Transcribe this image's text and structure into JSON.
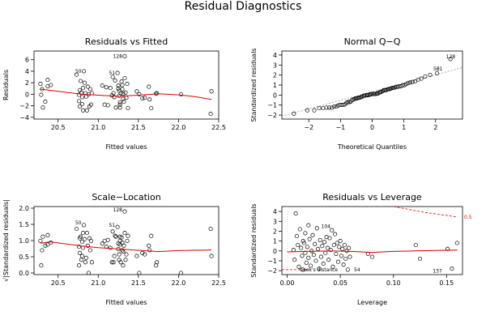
{
  "main_title": "Residual Diagnostics",
  "chart_data": [
    {
      "type": "scatter",
      "title": "Residuals vs Fitted",
      "xlabel": "Fitted values",
      "ylabel": "Residuals",
      "xlim": [
        20.2,
        22.5
      ],
      "ylim": [
        -4.3,
        7.5
      ],
      "xticks": [
        20.5,
        21.0,
        21.5,
        22.0,
        22.5
      ],
      "xtick_labels": [
        "20.5",
        "21.0",
        "21.5",
        "22.0",
        "22.5"
      ],
      "yticks": [
        -4,
        -2,
        0,
        2,
        4,
        6
      ],
      "ytick_labels": [
        "−4",
        "−2",
        "0",
        "2",
        "4",
        "6"
      ],
      "points": [
        [
          20.28,
          1.8
        ],
        [
          20.29,
          -0.1
        ],
        [
          20.3,
          0.9
        ],
        [
          20.31,
          -2.3
        ],
        [
          20.34,
          -1.3
        ],
        [
          20.37,
          2.5
        ],
        [
          20.37,
          1.4
        ],
        [
          20.41,
          1.6
        ],
        [
          20.73,
          3.4
        ],
        [
          20.76,
          -0.1
        ],
        [
          20.76,
          -1.2
        ],
        [
          20.77,
          0.7
        ],
        [
          20.77,
          -2.1
        ],
        [
          20.78,
          2.3
        ],
        [
          20.79,
          0.3
        ],
        [
          20.8,
          -0.5
        ],
        [
          20.8,
          -1.7
        ],
        [
          20.81,
          1.1
        ],
        [
          20.81,
          -2.8
        ],
        [
          20.82,
          4.0
        ],
        [
          20.83,
          2.0
        ],
        [
          20.84,
          0.2
        ],
        [
          20.85,
          -0.4
        ],
        [
          20.86,
          -2.8
        ],
        [
          20.87,
          1.3
        ],
        [
          20.88,
          0.0
        ],
        [
          20.89,
          -2.1
        ],
        [
          20.9,
          0.9
        ],
        [
          20.91,
          -1.8
        ],
        [
          20.92,
          0.2
        ],
        [
          21.05,
          1.5
        ],
        [
          21.08,
          -1.8
        ],
        [
          21.1,
          1.2
        ],
        [
          21.12,
          -1.9
        ],
        [
          21.15,
          1.1
        ],
        [
          21.17,
          -0.2
        ],
        [
          21.18,
          3.0
        ],
        [
          21.19,
          0.2
        ],
        [
          21.2,
          -0.5
        ],
        [
          21.21,
          2.4
        ],
        [
          21.22,
          -2.3
        ],
        [
          21.24,
          3.7
        ],
        [
          21.25,
          1.5
        ],
        [
          21.25,
          1.0
        ],
        [
          21.26,
          0.6
        ],
        [
          21.26,
          -0.3
        ],
        [
          21.27,
          -1.4
        ],
        [
          21.27,
          -1.8
        ],
        [
          21.27,
          -2.3
        ],
        [
          21.28,
          0.2
        ],
        [
          21.29,
          2.2
        ],
        [
          21.3,
          1.6
        ],
        [
          21.3,
          0.9
        ],
        [
          21.31,
          0.1
        ],
        [
          21.31,
          -0.8
        ],
        [
          21.32,
          -1.3
        ],
        [
          21.33,
          2.8
        ],
        [
          21.33,
          6.6
        ],
        [
          21.34,
          0.3
        ],
        [
          21.35,
          -0.6
        ],
        [
          21.36,
          1.8
        ],
        [
          21.37,
          -2.4
        ],
        [
          21.48,
          0.5
        ],
        [
          21.51,
          0.0
        ],
        [
          21.55,
          -0.7
        ],
        [
          21.58,
          -0.6
        ],
        [
          21.63,
          1.3
        ],
        [
          21.64,
          -0.9
        ],
        [
          21.66,
          -2.4
        ],
        [
          21.72,
          0.1
        ],
        [
          21.73,
          0.2
        ],
        [
          22.03,
          0.0
        ],
        [
          22.4,
          -3.4
        ],
        [
          22.41,
          0.5
        ]
      ],
      "smooth": [
        [
          20.28,
          0.9
        ],
        [
          20.5,
          0.5
        ],
        [
          20.8,
          0.0
        ],
        [
          21.0,
          -0.15
        ],
        [
          21.25,
          -0.35
        ],
        [
          21.5,
          -0.15
        ],
        [
          21.75,
          0.1
        ],
        [
          22.0,
          -0.1
        ],
        [
          22.2,
          -0.4
        ],
        [
          22.41,
          -0.9
        ]
      ],
      "labels": [
        {
          "text": "128",
          "x": 21.33,
          "y": 6.6
        },
        {
          "text": "50",
          "x": 20.82,
          "y": 4.0
        },
        {
          "text": "51",
          "x": 21.24,
          "y": 3.7
        }
      ]
    },
    {
      "type": "scatter",
      "title": "Normal Q−Q",
      "xlabel": "Theoretical Quantiles",
      "ylabel": "Standardized residuals",
      "xlim": [
        -2.85,
        2.85
      ],
      "ylim": [
        -2.4,
        4.4
      ],
      "xticks": [
        -2,
        -1,
        0,
        1,
        2
      ],
      "xtick_labels": [
        "−2",
        "−1",
        "0",
        "1",
        "2"
      ],
      "yticks": [
        -2,
        -1,
        0,
        1,
        2,
        3,
        4
      ],
      "ytick_labels": [
        "−2",
        "−1",
        "0",
        "1",
        "2",
        "3",
        "4"
      ],
      "refline": [
        [
          -2.85,
          -2.1
        ],
        [
          2.85,
          2.75
        ]
      ],
      "labels": [
        {
          "text": "128",
          "x": 2.7,
          "y": 3.85
        },
        {
          "text": "51",
          "x": 2.3,
          "y": 2.6
        },
        {
          "text": "50",
          "x": 2.2,
          "y": 2.6
        }
      ]
    },
    {
      "type": "scatter",
      "title": "Scale−Location",
      "xlabel": "Fitted values",
      "ylabel": "√|Standardized residuals|",
      "xlim": [
        20.2,
        22.5
      ],
      "ylim": [
        -0.05,
        2.05
      ],
      "xticks": [
        20.5,
        21.0,
        21.5,
        22.0,
        22.5
      ],
      "xtick_labels": [
        "20.5",
        "21.0",
        "21.5",
        "22.0",
        "22.5"
      ],
      "yticks": [
        0.0,
        0.5,
        1.0,
        1.5,
        2.0
      ],
      "ytick_labels": [
        "0.0",
        "0.5",
        "1.0",
        "1.5",
        "2.0"
      ],
      "smooth": [
        [
          20.28,
          0.92
        ],
        [
          20.4,
          0.96
        ],
        [
          20.8,
          0.83
        ],
        [
          21.0,
          0.78
        ],
        [
          21.25,
          0.74
        ],
        [
          21.5,
          0.7
        ],
        [
          21.75,
          0.66
        ],
        [
          22.0,
          0.69
        ],
        [
          22.41,
          0.71
        ]
      ],
      "labels": [
        {
          "text": "128",
          "x": 21.33,
          "y": 1.95
        },
        {
          "text": "50",
          "x": 20.82,
          "y": 1.55
        },
        {
          "text": "51",
          "x": 21.24,
          "y": 1.48
        }
      ]
    },
    {
      "type": "scatter",
      "title": "Residuals vs Leverage",
      "xlabel": "Leverage",
      "ylabel": "Standardized residuals",
      "xlim": [
        -0.005,
        0.165
      ],
      "ylim": [
        -2.4,
        4.5
      ],
      "xticks": [
        0.0,
        0.05,
        0.1,
        0.15
      ],
      "xtick_labels": [
        "0.00",
        "0.05",
        "0.10",
        "0.15"
      ],
      "yticks": [
        -2,
        -1,
        0,
        1,
        2,
        3,
        4
      ],
      "ytick_labels": [
        "−2",
        "−1",
        "0",
        "1",
        "2",
        "3",
        "4"
      ],
      "points": [
        [
          0.008,
          3.8
        ],
        [
          0.006,
          0.1
        ],
        [
          0.007,
          -0.9
        ],
        [
          0.009,
          1.5
        ],
        [
          0.01,
          0.6
        ],
        [
          0.011,
          -1.6
        ],
        [
          0.012,
          2.2
        ],
        [
          0.013,
          0.3
        ],
        [
          0.014,
          -0.5
        ],
        [
          0.015,
          1.0
        ],
        [
          0.015,
          -1.9
        ],
        [
          0.016,
          0.8
        ],
        [
          0.017,
          -0.2
        ],
        [
          0.017,
          1.8
        ],
        [
          0.018,
          -1.2
        ],
        [
          0.019,
          0.4
        ],
        [
          0.02,
          2.6
        ],
        [
          0.02,
          -0.7
        ],
        [
          0.021,
          1.2
        ],
        [
          0.022,
          -1.5
        ],
        [
          0.023,
          0.0
        ],
        [
          0.024,
          1.6
        ],
        [
          0.025,
          -0.4
        ],
        [
          0.026,
          0.7
        ],
        [
          0.027,
          -1.0
        ],
        [
          0.028,
          2.3
        ],
        [
          0.029,
          0.2
        ],
        [
          0.03,
          -1.8
        ],
        [
          0.031,
          1.1
        ],
        [
          0.032,
          -0.6
        ],
        [
          0.033,
          0.5
        ],
        [
          0.034,
          -1.3
        ],
        [
          0.035,
          0.9
        ],
        [
          0.036,
          -0.2
        ],
        [
          0.037,
          1.4
        ],
        [
          0.038,
          0.3
        ],
        [
          0.039,
          -0.9
        ],
        [
          0.04,
          1.3
        ],
        [
          0.041,
          0.1
        ],
        [
          0.042,
          2.1
        ],
        [
          0.043,
          -1.6
        ],
        [
          0.044,
          0.6
        ],
        [
          0.045,
          1.7
        ],
        [
          0.046,
          -0.3
        ],
        [
          0.047,
          0.8
        ],
        [
          0.048,
          -1.1
        ],
        [
          0.049,
          0.4
        ],
        [
          0.05,
          1.0
        ],
        [
          0.051,
          -0.5
        ],
        [
          0.052,
          0.2
        ],
        [
          0.053,
          -1.4
        ],
        [
          0.054,
          0.6
        ],
        [
          0.055,
          -0.8
        ],
        [
          0.056,
          0.0
        ],
        [
          0.057,
          -1.9
        ],
        [
          0.058,
          0.3
        ],
        [
          0.059,
          -0.6
        ],
        [
          0.076,
          -0.3
        ],
        [
          0.08,
          -0.6
        ],
        [
          0.121,
          0.6
        ],
        [
          0.125,
          -0.8
        ],
        [
          0.151,
          0.2
        ],
        [
          0.155,
          -1.8
        ],
        [
          0.16,
          0.8
        ]
      ],
      "smooth": [
        [
          0.0,
          -0.1
        ],
        [
          0.02,
          -0.05
        ],
        [
          0.04,
          0.0
        ],
        [
          0.06,
          -0.05
        ],
        [
          0.08,
          -0.15
        ],
        [
          0.1,
          -0.05
        ],
        [
          0.12,
          0.0
        ],
        [
          0.14,
          0.05
        ],
        [
          0.16,
          0.1
        ]
      ],
      "cooks": [
        [
          0.1,
          4.5
        ],
        [
          0.13,
          3.9
        ],
        [
          0.16,
          3.45
        ]
      ],
      "cooks_lower": [
        [
          -0.005,
          -1.9
        ],
        [
          0.02,
          -1.9
        ]
      ],
      "legend": "Cook's distance",
      "cooks_label": "0.5",
      "labels": [
        {
          "text": "104",
          "x": 0.043,
          "y": 2.5
        },
        {
          "text": "54",
          "x": 0.071,
          "y": -1.9
        },
        {
          "text": "137",
          "x": 0.148,
          "y": -2.05
        }
      ]
    }
  ]
}
